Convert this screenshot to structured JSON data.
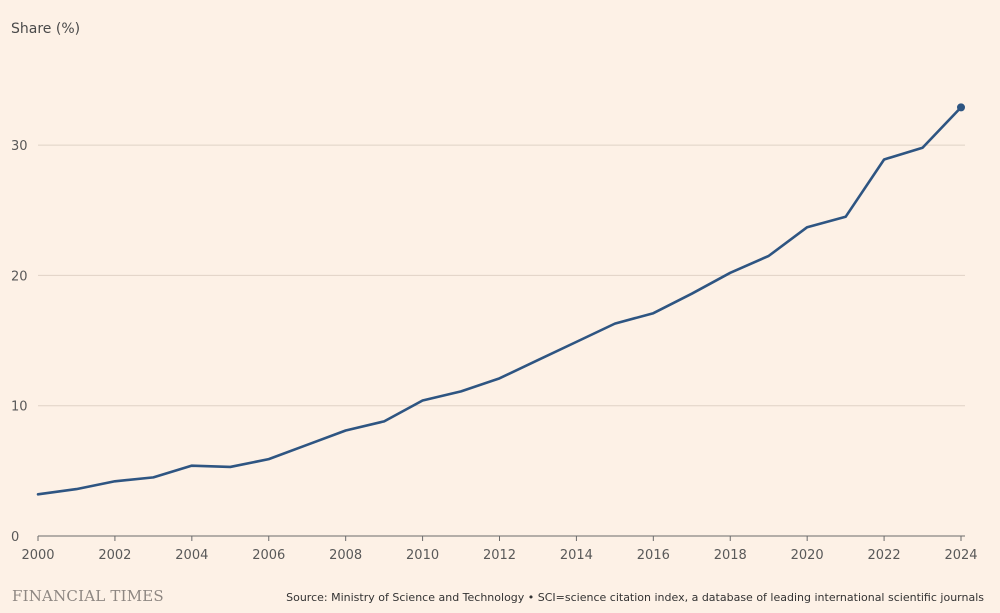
{
  "brand": "FINANCIAL TIMES",
  "source": "Source: Ministry of Science and Technology • SCI=science citation index, a database of leading international scientific journals",
  "colors": {
    "background": "#fdf1e6",
    "line": "#2e5582",
    "grid": "#e0d2c6",
    "axis": "#6b6b6b"
  },
  "chart_data": {
    "type": "line",
    "title": "",
    "xlabel": "",
    "ylabel": "Share (%)",
    "xlim": [
      2000,
      2024
    ],
    "ylim": [
      0,
      35
    ],
    "x_ticks": [
      2000,
      2002,
      2004,
      2006,
      2008,
      2010,
      2012,
      2014,
      2016,
      2018,
      2020,
      2022,
      2024
    ],
    "y_ticks": [
      0,
      10,
      20,
      30
    ],
    "grid": true,
    "legend": "none",
    "series": [
      {
        "x": [
          2000,
          2001,
          2002,
          2003,
          2004,
          2005,
          2006,
          2007,
          2008,
          2009,
          2010,
          2011,
          2012,
          2013,
          2014,
          2015,
          2016,
          2017,
          2018,
          2019,
          2020,
          2021,
          2022,
          2023,
          2024
        ],
        "values": [
          3.2,
          3.6,
          4.2,
          4.5,
          5.4,
          5.3,
          5.9,
          7.0,
          8.1,
          8.8,
          10.4,
          11.1,
          12.1,
          13.5,
          14.9,
          16.3,
          17.1,
          18.6,
          20.2,
          21.5,
          23.7,
          24.5,
          28.9,
          29.8,
          32.9
        ],
        "color": "#2e5582",
        "end_marker": true
      }
    ]
  }
}
